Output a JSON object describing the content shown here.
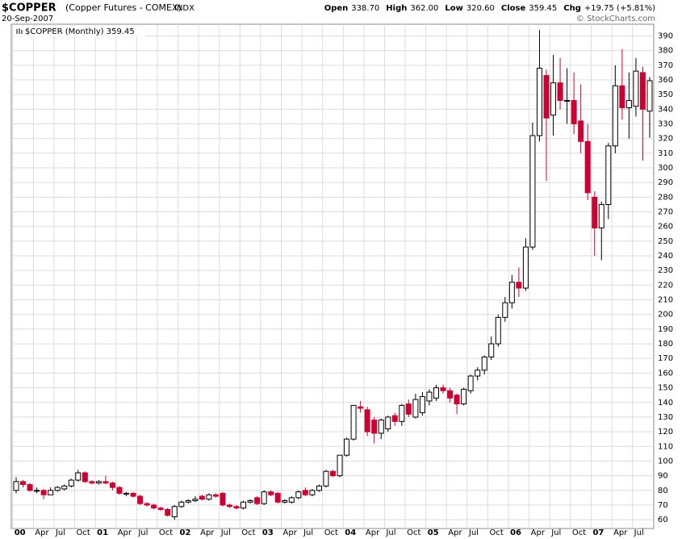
{
  "chart_data": {
    "type": "candlestick",
    "symbol": "$COPPER",
    "name": "(Copper Futures - COMEX)",
    "exchange": "INDX",
    "date": "20-Sep-2007",
    "quote": [
      {
        "label": "Open",
        "value": "338.70"
      },
      {
        "label": "High",
        "value": "362.00"
      },
      {
        "label": "Low",
        "value": "320.60"
      },
      {
        "label": "Close",
        "value": "359.45"
      },
      {
        "label": "Chg",
        "value": "+19.75 (+5.81%)"
      }
    ],
    "credit": "© StockCharts.com",
    "legend": "$COPPER (Monthly) 359.45",
    "up_color": "#ffffff",
    "down_color": "#cc0033",
    "grid": true,
    "ylim": [
      54,
      398
    ],
    "yticks": [
      60,
      70,
      80,
      90,
      100,
      110,
      120,
      130,
      140,
      150,
      160,
      170,
      180,
      190,
      200,
      210,
      220,
      230,
      240,
      250,
      260,
      270,
      280,
      290,
      300,
      310,
      320,
      330,
      340,
      350,
      360,
      370,
      380,
      390
    ],
    "categories": [
      "00",
      null,
      null,
      "Apr",
      null,
      null,
      "Jul",
      null,
      null,
      "Oct",
      null,
      null,
      "01",
      null,
      null,
      "Apr",
      null,
      null,
      "Jul",
      null,
      null,
      "Oct",
      null,
      null,
      "02",
      null,
      null,
      "Apr",
      null,
      null,
      "Jul",
      null,
      null,
      "Oct",
      null,
      null,
      "03",
      null,
      null,
      "Apr",
      null,
      null,
      "Jul",
      null,
      null,
      "Oct",
      null,
      null,
      "04",
      null,
      null,
      "Apr",
      null,
      null,
      "Jul",
      null,
      null,
      "Oct",
      null,
      null,
      "05",
      null,
      null,
      "Apr",
      null,
      null,
      "Jul",
      null,
      null,
      "Oct",
      null,
      null,
      "06",
      null,
      null,
      "Apr",
      null,
      null,
      "Jul",
      null,
      null,
      "Oct",
      null,
      null,
      "07",
      null,
      null,
      "Apr",
      null,
      null,
      "Jul",
      null,
      null
    ],
    "open": [
      80,
      86,
      84,
      80,
      80,
      77,
      80,
      81,
      83,
      87,
      92,
      86,
      85,
      86,
      85,
      82,
      78,
      78,
      76,
      71,
      70,
      68,
      67,
      62,
      69,
      72,
      73,
      76,
      74,
      77,
      78,
      70,
      69,
      68,
      72,
      75,
      71,
      79,
      78,
      72,
      72,
      75,
      80,
      77,
      80,
      83,
      93,
      90,
      104,
      115,
      137,
      135,
      128,
      119,
      122,
      131,
      127,
      139,
      130,
      133,
      141,
      143,
      150,
      148,
      145,
      139,
      148,
      158,
      162,
      171,
      180,
      198,
      208,
      222,
      218,
      246,
      322,
      363,
      336,
      358,
      346,
      346,
      332,
      318,
      280,
      259,
      275,
      315,
      356,
      341,
      342,
      365,
      338.7
    ],
    "high": [
      89,
      87,
      85,
      82,
      81,
      82,
      83,
      84,
      88,
      94,
      93,
      87,
      87,
      90,
      86,
      83,
      79,
      79,
      77,
      72,
      71,
      69,
      68,
      70,
      73,
      74,
      76,
      77,
      78,
      78,
      79,
      71,
      70,
      73,
      74,
      76,
      80,
      80,
      79,
      74,
      76,
      80,
      82,
      81,
      84,
      94,
      94,
      104,
      116,
      138,
      141,
      137,
      130,
      129,
      131,
      133,
      139,
      142,
      146,
      147,
      149,
      152,
      152,
      150,
      146,
      150,
      159,
      164,
      172,
      185,
      200,
      212,
      227,
      232,
      252,
      331,
      394,
      367,
      377,
      375,
      368,
      365,
      357,
      330,
      284,
      277,
      317,
      370,
      381,
      365,
      375,
      369,
      362
    ],
    "low": [
      78,
      82,
      79,
      78,
      74,
      77,
      79,
      80,
      82,
      86,
      85,
      84,
      84,
      84,
      80,
      77,
      76,
      75,
      70,
      69,
      67,
      66,
      62,
      60,
      68,
      71,
      72,
      73,
      73,
      75,
      69,
      68,
      67,
      67,
      71,
      70,
      70,
      76,
      71,
      71,
      71,
      74,
      76,
      76,
      79,
      82,
      89,
      89,
      103,
      114,
      133,
      117,
      112,
      115,
      120,
      124,
      124,
      130,
      129,
      131,
      138,
      141,
      146,
      140,
      132,
      138,
      146,
      155,
      159,
      169,
      178,
      195,
      204,
      212,
      216,
      244,
      318,
      291,
      322,
      340,
      330,
      323,
      310,
      278,
      240,
      237,
      265,
      310,
      333,
      320,
      335,
      305,
      320.6
    ],
    "close": [
      86,
      84,
      80,
      80,
      77,
      80,
      82,
      83,
      87,
      92,
      86,
      85,
      86,
      85,
      82,
      78,
      78,
      76,
      71,
      70,
      68,
      67,
      63,
      69,
      72,
      73,
      74,
      74,
      77,
      76,
      70,
      69,
      68,
      72,
      73,
      71,
      79,
      77,
      72,
      73,
      75,
      79,
      77,
      80,
      83,
      93,
      90,
      104,
      115,
      138,
      136,
      120,
      119,
      128,
      130,
      127,
      138,
      132,
      142,
      144,
      147,
      150,
      148,
      143,
      139,
      149,
      158,
      162,
      171,
      180,
      198,
      208,
      222,
      218,
      246,
      322,
      368,
      334,
      358,
      346,
      346,
      330,
      318,
      283,
      259,
      275,
      315,
      356,
      341,
      346,
      366,
      340,
      359.45
    ]
  }
}
